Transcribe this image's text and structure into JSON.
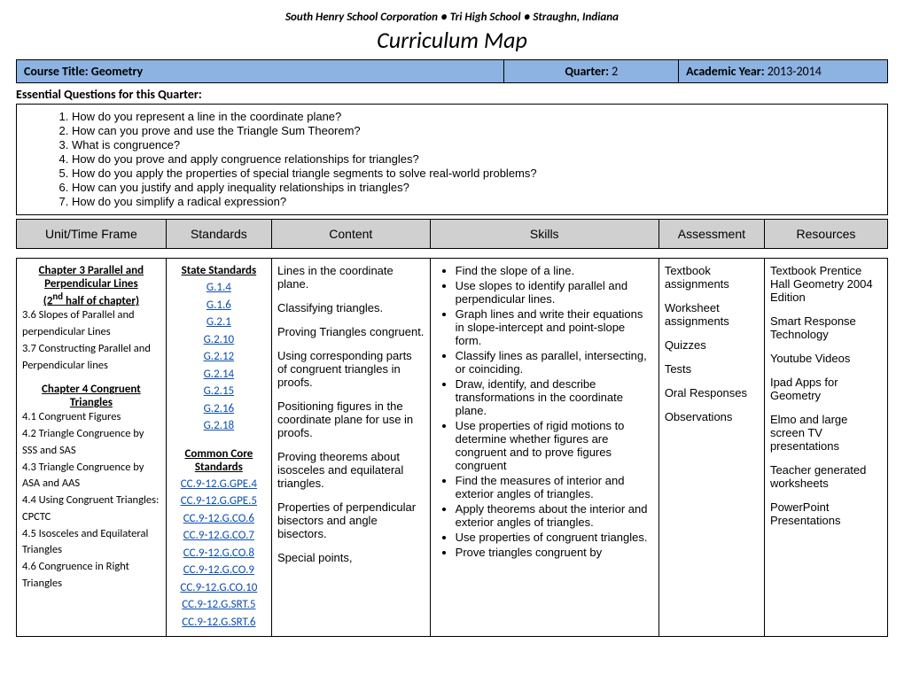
{
  "school_header": "South Henry School Corporation ● Tri High School ● Straughn, Indiana",
  "doc_title": "Curriculum Map",
  "header_row": {
    "course_label": "Course Title:",
    "course_value": " Geometry",
    "quarter_label": "Quarter:",
    "quarter_value": "  2",
    "year_label": "Academic Year:",
    "year_value": " 2013-2014"
  },
  "eq_heading": "Essential Questions for this Quarter:",
  "essential_questions": [
    "How do you represent a line in the coordinate plane?",
    "How can you prove and use the Triangle Sum Theorem?",
    "What is congruence?",
    "How do you prove and apply congruence relationships for triangles?",
    "How do you apply the properties of special triangle segments to solve real-world problems?",
    "How can you justify and apply inequality relationships in triangles?",
    "How do you simplify a radical expression?"
  ],
  "columns": [
    "Unit/Time Frame",
    "Standards",
    "Content",
    "Skills",
    "Assessment",
    "Resources"
  ],
  "unit_col": {
    "title1": "Chapter 3 Parallel and Perpendicular Lines",
    "title1_sub": "(2",
    "title1_sub_ord": "nd",
    "title1_sub_tail": " half of chapter)",
    "items1": [
      "3.6 Slopes of Parallel and perpendicular Lines",
      "3.7 Constructing Parallel and Perpendicular lines"
    ],
    "title2": "Chapter 4 Congruent Triangles",
    "items2": [
      "4.1 Congruent Figures",
      "4.2 Triangle Congruence by SSS and SAS",
      "4.3 Triangle Congruence by ASA and AAS",
      "4.4 Using Congruent Triangles: CPCTC",
      "4.5 Isosceles and Equilateral Triangles",
      "4.6 Congruence in Right Triangles"
    ]
  },
  "standards_col": {
    "state_head": "State Standards",
    "state": [
      "G.1.4",
      "G.1.6",
      "G.2.1",
      "G.2.10",
      "G.2.12",
      "G.2.14",
      "G.2.15",
      "G.2.16",
      "G.2.18"
    ],
    "cc_head": "Common Core Standards",
    "cc": [
      "CC.9-12.G.GPE.4",
      "CC.9-12.G.GPE.5",
      "CC.9-12.G.CO.6",
      "CC.9-12.G.CO.7",
      "CC.9-12.G.CO.8",
      "CC.9-12.G.CO.9",
      "CC.9-12.G.CO.10",
      "CC.9-12.G.SRT.5",
      "CC.9-12.G.SRT.6"
    ]
  },
  "content_col": [
    "Lines in the coordinate plane.",
    "Classifying triangles.",
    "Proving Triangles congruent.",
    "Using corresponding parts of congruent triangles in proofs.",
    "Positioning figures in the coordinate plane for use in proofs.",
    "Proving theorems about isosceles and equilateral triangles.",
    "Properties of perpendicular bisectors and angle bisectors.",
    "Special points,"
  ],
  "skills_col": [
    "Find the slope of a line.",
    "Use slopes to identify parallel and perpendicular lines.",
    "Graph lines and write their equations in slope-intercept and point-slope form.",
    "Classify lines as parallel, intersecting, or coinciding.",
    "Draw, identify, and describe transformations in the coordinate plane.",
    "Use properties of rigid motions to determine whether figures are congruent and to prove figures congruent",
    "Find the measures of interior and exterior angles of triangles.",
    "Apply theorems about the interior and exterior angles of triangles.",
    "Use properties of congruent triangles.",
    "Prove triangles congruent by"
  ],
  "assessment_col": [
    "Textbook assignments",
    "Worksheet assignments",
    "Quizzes",
    "Tests",
    "Oral Responses",
    "Observations"
  ],
  "resources_col": [
    "Textbook Prentice Hall Geometry 2004 Edition",
    "Smart Response Technology",
    "Youtube Videos",
    "Ipad Apps for Geometry",
    "Elmo and large screen TV presentations",
    "Teacher generated worksheets",
    "PowerPoint Presentations"
  ],
  "colors": {
    "header_bg": "#8db3e2",
    "grey_bg": "#d0d0d0",
    "link": "#0b4fb3",
    "border": "#000000"
  }
}
